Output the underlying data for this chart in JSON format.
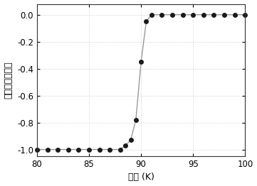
{
  "x_data": [
    80,
    81,
    82,
    83,
    84,
    85,
    86,
    87,
    88,
    88.5,
    89,
    89.5,
    90,
    90.5,
    91,
    92,
    93,
    94,
    95,
    96,
    97,
    98,
    99,
    100
  ],
  "y_data": [
    -1.0,
    -1.0,
    -1.0,
    -1.0,
    -1.0,
    -1.0,
    -1.0,
    -1.0,
    -1.0,
    -0.97,
    -0.93,
    -0.78,
    -0.35,
    -0.05,
    0.0,
    0.0,
    0.0,
    0.0,
    0.0,
    0.0,
    0.0,
    0.0,
    0.0,
    0.0
  ],
  "xlabel": "温度 (K)",
  "ylabel": "归一化的磁化率",
  "xlim": [
    80,
    100
  ],
  "ylim": [
    -1.05,
    0.08
  ],
  "xticks": [
    80,
    85,
    90,
    95,
    100
  ],
  "yticks": [
    0.0,
    -0.2,
    -0.4,
    -0.6,
    -0.8,
    -1.0
  ],
  "line_color": "#999999",
  "marker_color": "#1a1a1a",
  "marker_size": 5,
  "line_width": 1.0,
  "grid": true,
  "grid_color": "#cccccc",
  "grid_linestyle": ":",
  "background_color": "#ffffff",
  "label_fontsize": 9,
  "tick_fontsize": 8.5
}
